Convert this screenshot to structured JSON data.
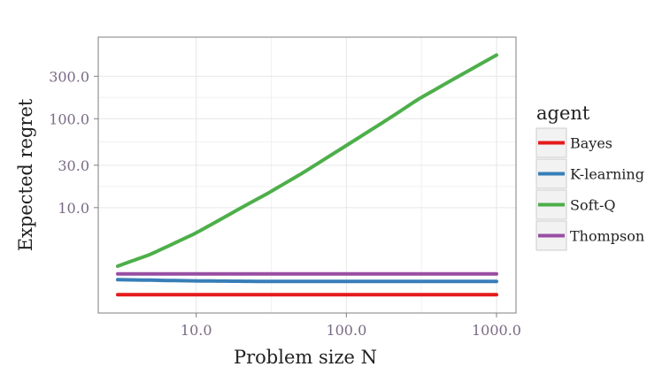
{
  "chart_data": {
    "type": "line",
    "xlabel": "Problem size N",
    "ylabel": "Expected regret",
    "xscale": "log",
    "yscale": "log",
    "xlim": [
      3.0,
      1000.0
    ],
    "ylim": [
      0.9,
      600.0
    ],
    "x_ticks": [
      10.0,
      100.0,
      1000.0
    ],
    "x_tick_labels": [
      "10.0",
      "100.0",
      "1000.0"
    ],
    "y_ticks": [
      10.0,
      30.0,
      100.0,
      300.0
    ],
    "y_tick_labels": [
      "10.0",
      "30.0",
      "100.0",
      "300.0"
    ],
    "grid": true,
    "legend": {
      "title": "agent",
      "position": "right"
    },
    "series": [
      {
        "name": "Bayes",
        "color": "#e41a1c",
        "x": [
          3,
          10,
          30,
          100,
          300,
          1000
        ],
        "y": [
          1.05,
          1.05,
          1.05,
          1.05,
          1.05,
          1.05
        ]
      },
      {
        "name": "K-learning",
        "color": "#377eb8",
        "x": [
          3,
          10,
          30,
          100,
          300,
          1000
        ],
        "y": [
          1.55,
          1.5,
          1.48,
          1.48,
          1.48,
          1.48
        ]
      },
      {
        "name": "Soft-Q",
        "color": "#4daf4a",
        "x": [
          3,
          5,
          10,
          20,
          30,
          50,
          100,
          200,
          300,
          500,
          1000
        ],
        "y": [
          2.2,
          3.0,
          5.2,
          10.0,
          14.5,
          24.0,
          50.0,
          105.0,
          165.0,
          270.0,
          520.0
        ]
      },
      {
        "name": "Thompson",
        "color": "#984ea3",
        "x": [
          3,
          10,
          30,
          100,
          300,
          1000
        ],
        "y": [
          1.8,
          1.8,
          1.8,
          1.8,
          1.8,
          1.8
        ]
      }
    ]
  }
}
